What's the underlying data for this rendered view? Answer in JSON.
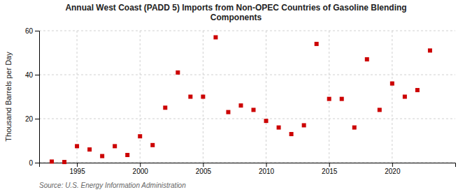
{
  "chart_data": {
    "type": "scatter",
    "title": "Annual West Coast (PADD 5) Imports from Non-OPEC Countries of Gasoline Blending\nComponents",
    "ylabel": "Thousand Barrels per Day",
    "source": "Source: U.S. Energy Information Administration",
    "x": [
      1993,
      1994,
      1995,
      1996,
      1997,
      1998,
      1999,
      2000,
      2001,
      2002,
      2003,
      2004,
      2005,
      2006,
      2007,
      2008,
      2009,
      2010,
      2011,
      2012,
      2013,
      2014,
      2015,
      2016,
      2017,
      2018,
      2019,
      2020,
      2021,
      2022,
      2023
    ],
    "values": [
      0.5,
      0.3,
      7.5,
      6.0,
      3.0,
      7.5,
      3.5,
      12.0,
      8.0,
      25.0,
      41.0,
      30.0,
      30.0,
      57.0,
      23.0,
      26.0,
      24.0,
      19.0,
      16.0,
      13.0,
      17.0,
      54.0,
      29.0,
      29.0,
      16.0,
      47.0,
      24.0,
      36.0,
      30.0,
      33.0,
      51.0
    ],
    "color": "#cc0000",
    "marker": "square",
    "xlim": [
      1992.0,
      2025.0
    ],
    "xticks": [
      1995,
      2000,
      2005,
      2010,
      2015,
      2020
    ],
    "ylim": [
      0,
      60
    ],
    "yticks": [
      0,
      20,
      40,
      60
    ],
    "grid": true
  }
}
